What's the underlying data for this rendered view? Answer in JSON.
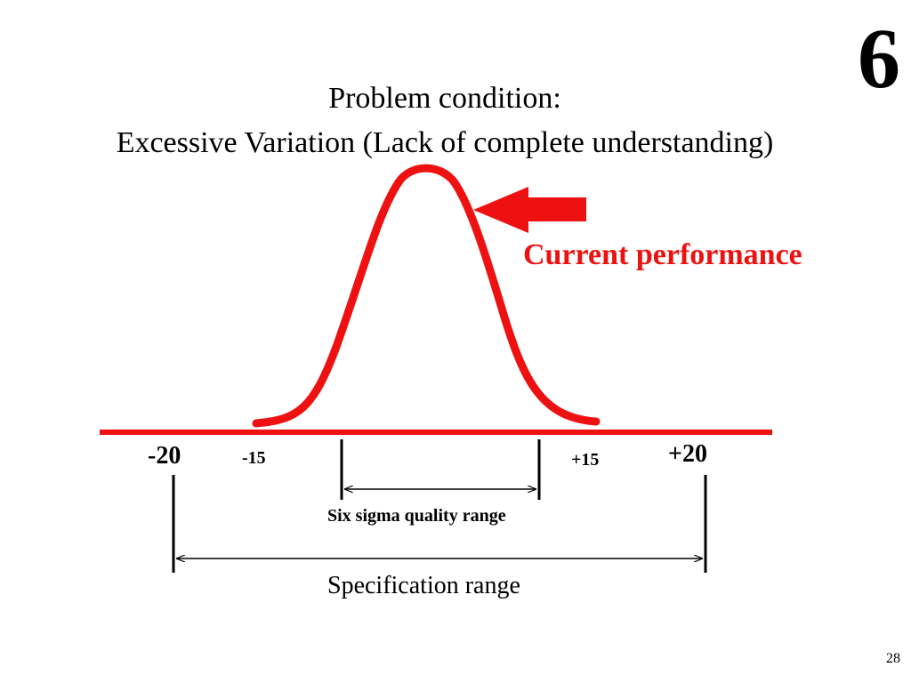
{
  "slide": {
    "badge": "6",
    "title_line1": "Problem condition:",
    "title_line2": "Excessive Variation (Lack of complete understanding)",
    "page_number": "28"
  },
  "diagram": {
    "curve_label": "Current performance",
    "accent_color": "#ee1111",
    "ticks": {
      "spec_low": "-20",
      "spec_high": "+20",
      "sigma_low": "-15",
      "sigma_high": "+15"
    },
    "ranges": {
      "six_sigma_label": "Six sigma quality range",
      "specification_label": "Specification range"
    }
  }
}
